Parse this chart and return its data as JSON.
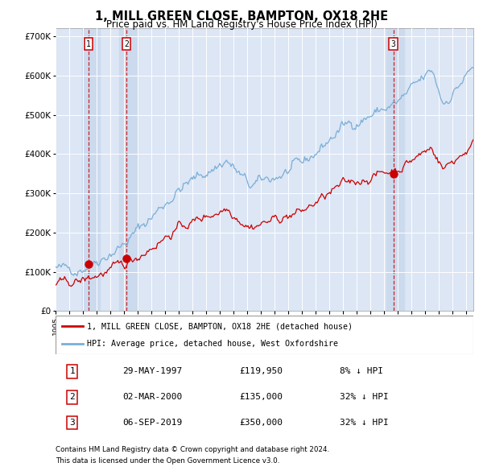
{
  "title": "1, MILL GREEN CLOSE, BAMPTON, OX18 2HE",
  "subtitle": "Price paid vs. HM Land Registry's House Price Index (HPI)",
  "title_fontsize": 10.5,
  "subtitle_fontsize": 8.5,
  "ylim": [
    0,
    720000
  ],
  "background_color": "#ffffff",
  "plot_bg_color": "#dce6f5",
  "grid_color": "#ffffff",
  "hpi_color": "#7aaed6",
  "price_color": "#cc0000",
  "marker_color": "#cc0000",
  "vline_color": "#cc0000",
  "vshade_color": "#ccdaee",
  "legend_label_price": "1, MILL GREEN CLOSE, BAMPTON, OX18 2HE (detached house)",
  "legend_label_hpi": "HPI: Average price, detached house, West Oxfordshire",
  "sale1_date": "29-MAY-1997",
  "sale1_price": 119950,
  "sale1_pct": "8% ↓ HPI",
  "sale1_year": 1997.41,
  "sale2_date": "02-MAR-2000",
  "sale2_price": 135000,
  "sale2_pct": "32% ↓ HPI",
  "sale2_year": 2000.17,
  "sale3_date": "06-SEP-2019",
  "sale3_price": 350000,
  "sale3_pct": "32% ↓ HPI",
  "sale3_year": 2019.67,
  "footnote1": "Contains HM Land Registry data © Crown copyright and database right 2024.",
  "footnote2": "This data is licensed under the Open Government Licence v3.0.",
  "ytick_labels": [
    "£0",
    "£100K",
    "£200K",
    "£300K",
    "£400K",
    "£500K",
    "£600K",
    "£700K"
  ],
  "ytick_values": [
    0,
    100000,
    200000,
    300000,
    400000,
    500000,
    600000,
    700000
  ],
  "xstart": 1995.0,
  "xend": 2025.5
}
